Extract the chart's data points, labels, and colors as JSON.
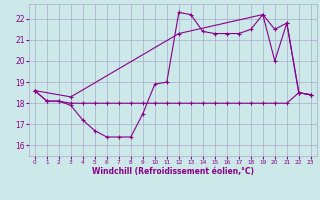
{
  "xlabel": "Windchill (Refroidissement éolien,°C)",
  "background_color": "#cce8e8",
  "grid_color": "#aaaacc",
  "line_color": "#880088",
  "xlim": [
    -0.5,
    23.5
  ],
  "ylim": [
    15.5,
    22.7
  ],
  "xticks": [
    0,
    1,
    2,
    3,
    4,
    5,
    6,
    7,
    8,
    9,
    10,
    11,
    12,
    13,
    14,
    15,
    16,
    17,
    18,
    19,
    20,
    21,
    22,
    23
  ],
  "yticks": [
    16,
    17,
    18,
    19,
    20,
    21,
    22
  ],
  "s1_x": [
    0,
    1,
    2,
    3,
    4,
    5,
    6,
    7,
    8,
    9,
    10,
    11,
    12,
    13,
    14,
    15,
    16,
    17,
    18,
    19,
    20,
    21,
    22,
    23
  ],
  "s1_y": [
    18.6,
    18.1,
    18.1,
    17.9,
    17.2,
    16.7,
    16.4,
    16.4,
    16.4,
    17.5,
    18.9,
    19.0,
    22.3,
    22.2,
    21.4,
    21.3,
    21.3,
    21.3,
    21.5,
    22.2,
    20.0,
    21.8,
    18.5,
    18.4
  ],
  "s2_x": [
    0,
    1,
    2,
    3,
    4,
    5,
    6,
    7,
    8,
    9,
    10,
    11,
    12,
    13,
    14,
    15,
    16,
    17,
    18,
    19,
    20,
    21,
    22,
    23
  ],
  "s2_y": [
    18.6,
    18.1,
    18.1,
    18.0,
    18.0,
    18.0,
    18.0,
    18.0,
    18.0,
    18.0,
    18.0,
    18.0,
    18.0,
    18.0,
    18.0,
    18.0,
    18.0,
    18.0,
    18.0,
    18.0,
    18.0,
    18.0,
    18.5,
    18.4
  ],
  "s3_x": [
    0,
    3,
    12,
    19,
    20,
    21,
    22,
    23
  ],
  "s3_y": [
    18.6,
    18.3,
    21.3,
    22.2,
    21.5,
    21.8,
    18.5,
    18.4
  ]
}
